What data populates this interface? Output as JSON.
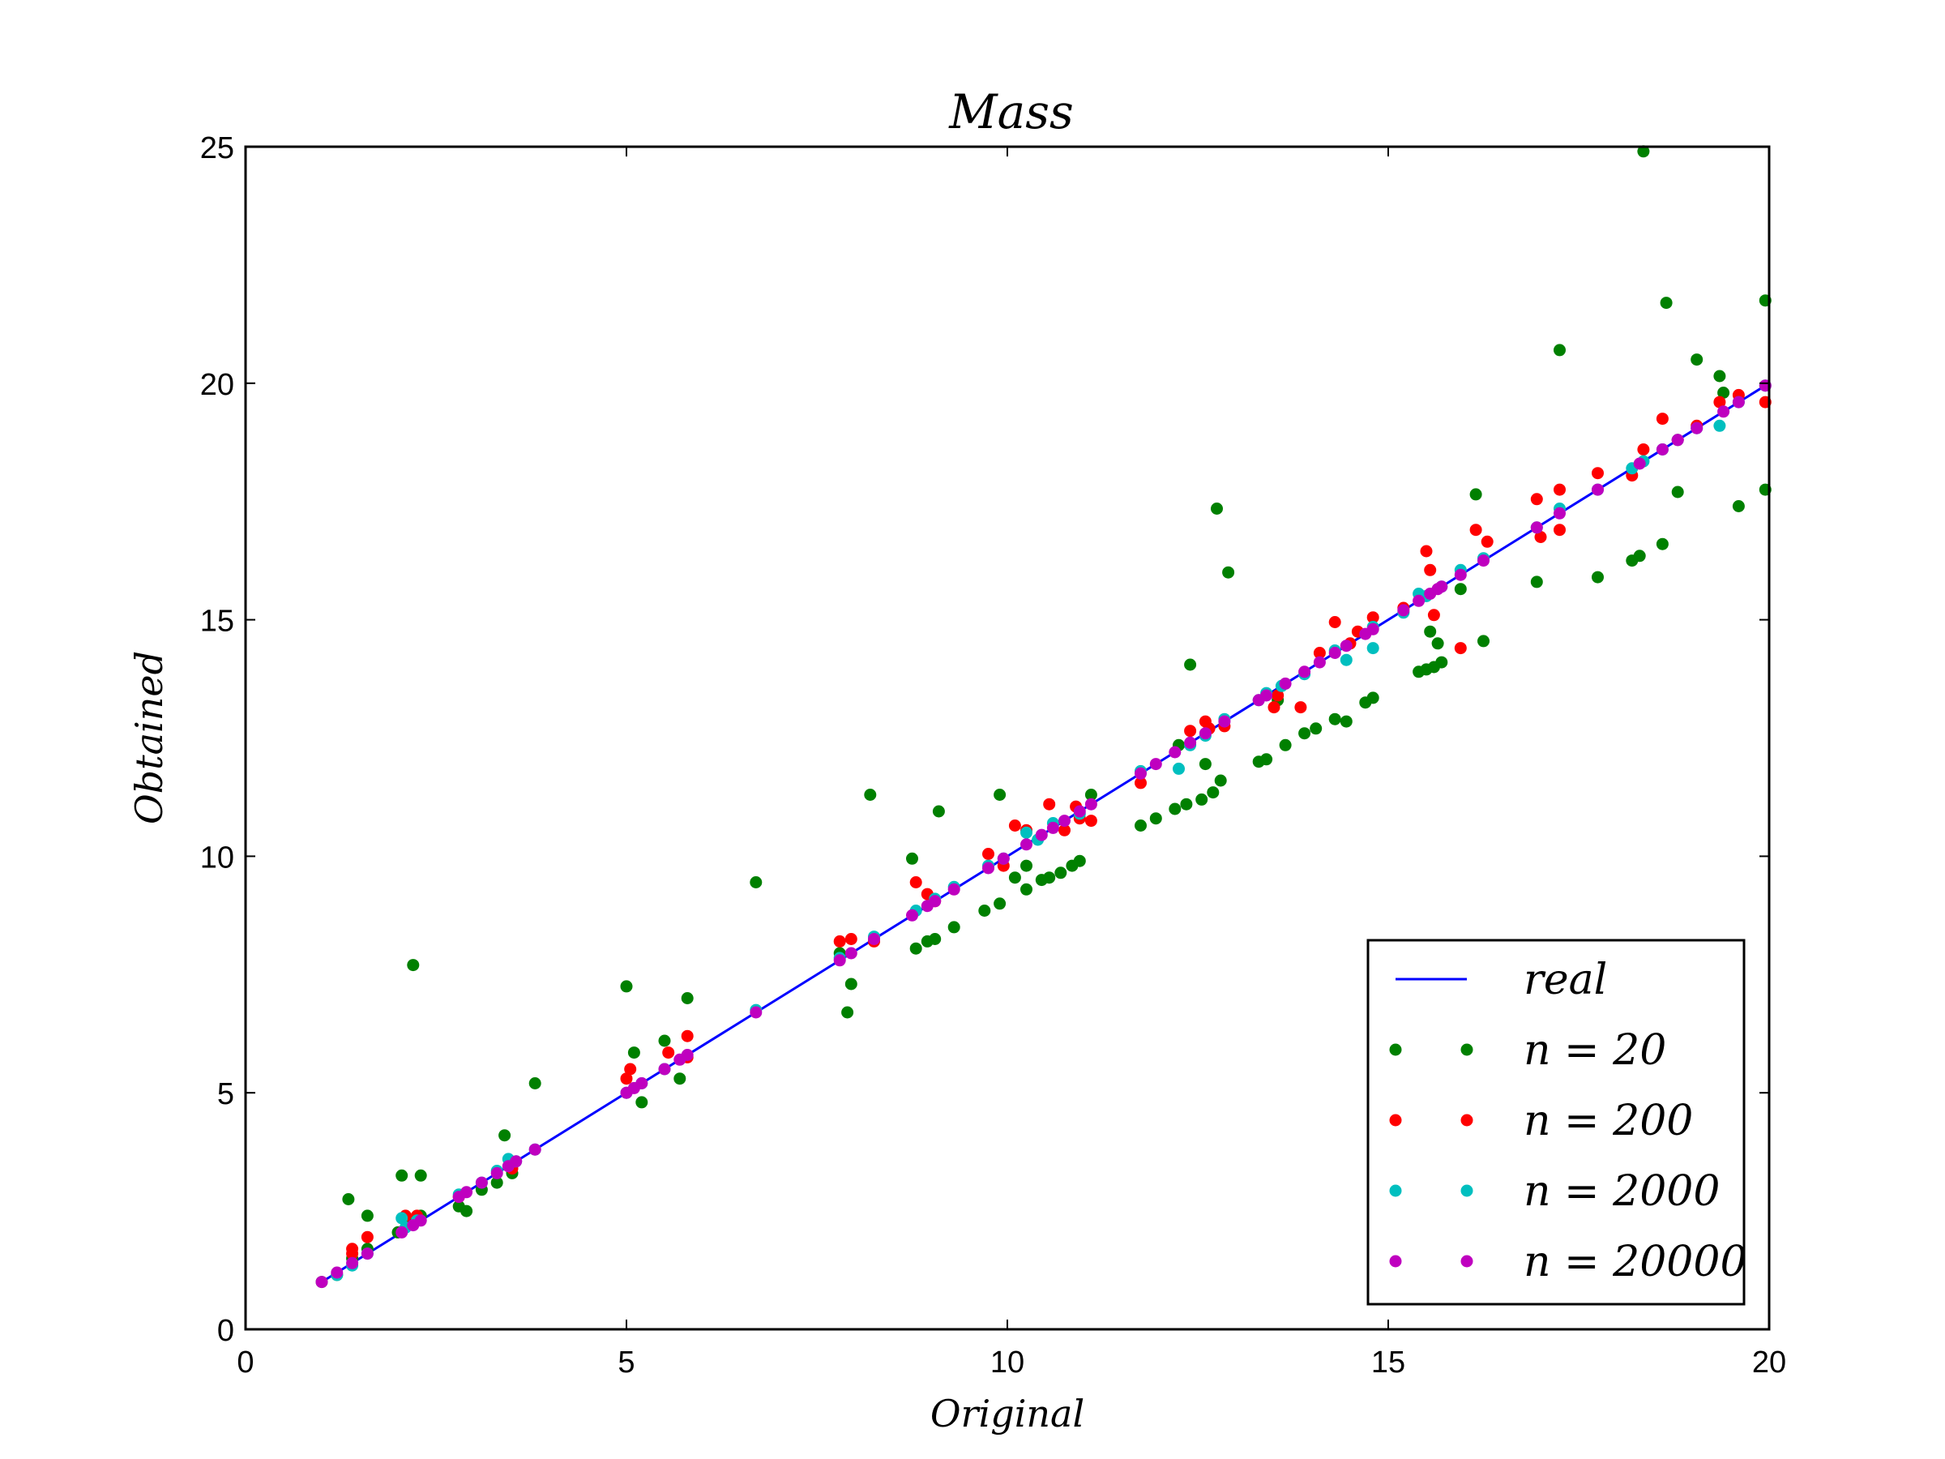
{
  "chart_data": {
    "type": "scatter",
    "title": "Mass",
    "xlabel": "Original",
    "ylabel": "Obtained",
    "xlim": [
      0,
      20
    ],
    "ylim": [
      0,
      25
    ],
    "xticks": [
      "0",
      "5",
      "10",
      "15",
      "20"
    ],
    "yticks": [
      "0",
      "5",
      "10",
      "15",
      "20",
      "25"
    ],
    "grid": false,
    "legend_position": "lower-right",
    "line_series": [
      {
        "name": "real",
        "color": "#0000ff",
        "x": [
          1,
          20
        ],
        "y": [
          1,
          20
        ]
      }
    ],
    "series": [
      {
        "name": "n=20",
        "legend_label": "n = 20",
        "color": "#008000",
        "points": [
          [
            1.0,
            1.0
          ],
          [
            1.2,
            1.15
          ],
          [
            1.35,
            2.75
          ],
          [
            1.4,
            1.5
          ],
          [
            1.6,
            2.4
          ],
          [
            1.6,
            1.7
          ],
          [
            2.0,
            2.05
          ],
          [
            2.05,
            3.25
          ],
          [
            2.1,
            2.3
          ],
          [
            2.2,
            7.7
          ],
          [
            2.3,
            3.25
          ],
          [
            2.3,
            2.4
          ],
          [
            2.8,
            2.6
          ],
          [
            2.9,
            2.5
          ],
          [
            3.1,
            2.95
          ],
          [
            3.3,
            3.1
          ],
          [
            3.4,
            4.1
          ],
          [
            3.5,
            3.3
          ],
          [
            3.8,
            5.2
          ],
          [
            5.0,
            7.25
          ],
          [
            5.1,
            5.85
          ],
          [
            5.2,
            4.8
          ],
          [
            5.5,
            6.1
          ],
          [
            5.7,
            5.3
          ],
          [
            5.8,
            7.0
          ],
          [
            6.7,
            9.45
          ],
          [
            7.8,
            7.95
          ],
          [
            7.9,
            6.7
          ],
          [
            7.95,
            7.3
          ],
          [
            8.2,
            11.3
          ],
          [
            8.75,
            9.95
          ],
          [
            8.8,
            8.05
          ],
          [
            8.95,
            8.2
          ],
          [
            9.05,
            8.25
          ],
          [
            9.1,
            10.95
          ],
          [
            9.3,
            8.5
          ],
          [
            9.7,
            8.85
          ],
          [
            9.9,
            9.0
          ],
          [
            9.9,
            11.3
          ],
          [
            10.1,
            9.55
          ],
          [
            10.25,
            9.3
          ],
          [
            10.25,
            9.8
          ],
          [
            10.45,
            9.5
          ],
          [
            10.55,
            9.55
          ],
          [
            10.7,
            9.65
          ],
          [
            10.85,
            9.8
          ],
          [
            10.95,
            9.9
          ],
          [
            11.1,
            11.3
          ],
          [
            11.75,
            10.65
          ],
          [
            11.95,
            10.8
          ],
          [
            12.2,
            11.0
          ],
          [
            12.25,
            12.35
          ],
          [
            12.35,
            11.1
          ],
          [
            12.4,
            14.05
          ],
          [
            12.55,
            11.2
          ],
          [
            12.6,
            11.95
          ],
          [
            12.7,
            11.35
          ],
          [
            12.75,
            17.35
          ],
          [
            12.8,
            11.6
          ],
          [
            12.9,
            16.0
          ],
          [
            13.3,
            12.0
          ],
          [
            13.4,
            12.05
          ],
          [
            13.55,
            13.3
          ],
          [
            13.65,
            12.35
          ],
          [
            13.9,
            12.6
          ],
          [
            14.05,
            12.7
          ],
          [
            14.3,
            12.9
          ],
          [
            14.45,
            12.85
          ],
          [
            14.7,
            13.25
          ],
          [
            14.8,
            13.35
          ],
          [
            15.4,
            13.9
          ],
          [
            15.5,
            13.95
          ],
          [
            15.55,
            14.75
          ],
          [
            15.6,
            14.0
          ],
          [
            15.65,
            14.5
          ],
          [
            15.7,
            14.1
          ],
          [
            15.95,
            15.65
          ],
          [
            16.15,
            17.65
          ],
          [
            16.25,
            14.55
          ],
          [
            16.95,
            15.8
          ],
          [
            17.25,
            20.7
          ],
          [
            17.75,
            15.9
          ],
          [
            18.2,
            16.25
          ],
          [
            18.3,
            16.35
          ],
          [
            18.35,
            24.9
          ],
          [
            18.6,
            16.6
          ],
          [
            18.65,
            21.7
          ],
          [
            18.8,
            17.7
          ],
          [
            19.05,
            20.5
          ],
          [
            19.35,
            20.15
          ],
          [
            19.4,
            19.8
          ],
          [
            19.6,
            17.4
          ],
          [
            19.95,
            21.75
          ],
          [
            19.95,
            17.75
          ]
        ]
      },
      {
        "name": "n=200",
        "legend_label": "n = 200",
        "color": "#ff0000",
        "points": [
          [
            1.4,
            1.6
          ],
          [
            1.4,
            1.7
          ],
          [
            1.6,
            1.95
          ],
          [
            2.1,
            2.4
          ],
          [
            2.25,
            2.4
          ],
          [
            2.8,
            2.8
          ],
          [
            3.5,
            3.4
          ],
          [
            5.0,
            5.3
          ],
          [
            5.05,
            5.5
          ],
          [
            5.55,
            5.85
          ],
          [
            5.8,
            6.2
          ],
          [
            5.8,
            5.75
          ],
          [
            7.8,
            8.2
          ],
          [
            7.95,
            8.25
          ],
          [
            8.25,
            8.2
          ],
          [
            8.8,
            9.45
          ],
          [
            8.95,
            9.2
          ],
          [
            9.05,
            9.05
          ],
          [
            9.75,
            10.05
          ],
          [
            9.95,
            9.8
          ],
          [
            10.1,
            10.65
          ],
          [
            10.25,
            10.55
          ],
          [
            10.55,
            11.1
          ],
          [
            10.75,
            10.55
          ],
          [
            10.9,
            11.05
          ],
          [
            10.95,
            10.8
          ],
          [
            11.1,
            10.75
          ],
          [
            11.75,
            11.55
          ],
          [
            12.4,
            12.65
          ],
          [
            12.6,
            12.85
          ],
          [
            12.65,
            12.7
          ],
          [
            12.85,
            12.75
          ],
          [
            13.5,
            13.15
          ],
          [
            13.55,
            13.4
          ],
          [
            13.85,
            13.15
          ],
          [
            14.1,
            14.3
          ],
          [
            14.3,
            14.95
          ],
          [
            14.5,
            14.5
          ],
          [
            14.6,
            14.75
          ],
          [
            14.8,
            15.05
          ],
          [
            15.2,
            15.25
          ],
          [
            15.5,
            16.45
          ],
          [
            15.55,
            16.05
          ],
          [
            15.6,
            15.1
          ],
          [
            15.95,
            14.4
          ],
          [
            16.15,
            16.9
          ],
          [
            16.3,
            16.65
          ],
          [
            16.95,
            17.55
          ],
          [
            17.0,
            16.75
          ],
          [
            17.25,
            17.75
          ],
          [
            17.25,
            16.9
          ],
          [
            17.75,
            18.1
          ],
          [
            18.2,
            18.05
          ],
          [
            18.35,
            18.6
          ],
          [
            18.6,
            19.25
          ],
          [
            18.8,
            18.8
          ],
          [
            19.05,
            19.1
          ],
          [
            19.35,
            19.6
          ],
          [
            19.6,
            19.75
          ],
          [
            19.95,
            19.6
          ]
        ]
      },
      {
        "name": "n=2000",
        "legend_label": "n = 2000",
        "color": "#00bfbf",
        "points": [
          [
            1.2,
            1.15
          ],
          [
            1.4,
            1.35
          ],
          [
            1.6,
            1.6
          ],
          [
            2.05,
            2.35
          ],
          [
            2.1,
            2.15
          ],
          [
            2.25,
            2.3
          ],
          [
            2.8,
            2.85
          ],
          [
            3.1,
            3.1
          ],
          [
            3.3,
            3.35
          ],
          [
            3.45,
            3.6
          ],
          [
            3.55,
            3.55
          ],
          [
            3.8,
            3.8
          ],
          [
            5.0,
            5.0
          ],
          [
            5.2,
            5.2
          ],
          [
            5.5,
            5.5
          ],
          [
            6.7,
            6.75
          ],
          [
            7.8,
            7.85
          ],
          [
            8.25,
            8.3
          ],
          [
            8.8,
            8.85
          ],
          [
            9.05,
            9.1
          ],
          [
            9.3,
            9.35
          ],
          [
            9.75,
            9.8
          ],
          [
            9.95,
            9.95
          ],
          [
            10.25,
            10.5
          ],
          [
            10.4,
            10.35
          ],
          [
            10.6,
            10.7
          ],
          [
            10.95,
            10.9
          ],
          [
            11.75,
            11.8
          ],
          [
            12.25,
            11.85
          ],
          [
            12.4,
            12.35
          ],
          [
            12.6,
            12.55
          ],
          [
            12.85,
            12.9
          ],
          [
            13.3,
            13.3
          ],
          [
            13.4,
            13.45
          ],
          [
            13.6,
            13.6
          ],
          [
            13.9,
            13.85
          ],
          [
            14.3,
            14.35
          ],
          [
            14.45,
            14.15
          ],
          [
            14.8,
            14.85
          ],
          [
            14.8,
            14.4
          ],
          [
            15.2,
            15.15
          ],
          [
            15.4,
            15.55
          ],
          [
            15.5,
            15.5
          ],
          [
            15.7,
            15.7
          ],
          [
            15.95,
            16.05
          ],
          [
            16.25,
            16.3
          ],
          [
            16.95,
            16.95
          ],
          [
            17.25,
            17.35
          ],
          [
            17.75,
            17.75
          ],
          [
            18.2,
            18.2
          ],
          [
            18.35,
            18.35
          ],
          [
            18.6,
            18.6
          ],
          [
            18.8,
            18.8
          ],
          [
            19.05,
            19.05
          ],
          [
            19.35,
            19.1
          ],
          [
            19.6,
            19.6
          ],
          [
            19.95,
            19.95
          ]
        ]
      },
      {
        "name": "n=20000",
        "legend_label": "n = 20000",
        "color": "#bf00bf",
        "points": [
          [
            1.0,
            1.0
          ],
          [
            1.2,
            1.2
          ],
          [
            1.4,
            1.4
          ],
          [
            1.6,
            1.6
          ],
          [
            2.05,
            2.05
          ],
          [
            2.2,
            2.2
          ],
          [
            2.3,
            2.3
          ],
          [
            2.8,
            2.8
          ],
          [
            2.9,
            2.9
          ],
          [
            3.1,
            3.1
          ],
          [
            3.3,
            3.3
          ],
          [
            3.45,
            3.45
          ],
          [
            3.55,
            3.55
          ],
          [
            3.8,
            3.8
          ],
          [
            5.0,
            5.0
          ],
          [
            5.1,
            5.1
          ],
          [
            5.2,
            5.2
          ],
          [
            5.5,
            5.5
          ],
          [
            5.7,
            5.7
          ],
          [
            5.8,
            5.8
          ],
          [
            6.7,
            6.7
          ],
          [
            7.8,
            7.8
          ],
          [
            7.95,
            7.95
          ],
          [
            8.25,
            8.25
          ],
          [
            8.75,
            8.75
          ],
          [
            8.95,
            8.95
          ],
          [
            9.05,
            9.05
          ],
          [
            9.3,
            9.3
          ],
          [
            9.75,
            9.75
          ],
          [
            9.95,
            9.95
          ],
          [
            10.25,
            10.25
          ],
          [
            10.45,
            10.45
          ],
          [
            10.6,
            10.6
          ],
          [
            10.75,
            10.75
          ],
          [
            10.95,
            10.95
          ],
          [
            11.1,
            11.1
          ],
          [
            11.75,
            11.75
          ],
          [
            11.95,
            11.95
          ],
          [
            12.2,
            12.2
          ],
          [
            12.4,
            12.4
          ],
          [
            12.6,
            12.6
          ],
          [
            12.85,
            12.85
          ],
          [
            13.3,
            13.3
          ],
          [
            13.4,
            13.4
          ],
          [
            13.65,
            13.65
          ],
          [
            13.9,
            13.9
          ],
          [
            14.1,
            14.1
          ],
          [
            14.3,
            14.3
          ],
          [
            14.45,
            14.45
          ],
          [
            14.7,
            14.7
          ],
          [
            14.8,
            14.8
          ],
          [
            15.2,
            15.2
          ],
          [
            15.4,
            15.4
          ],
          [
            15.55,
            15.55
          ],
          [
            15.65,
            15.65
          ],
          [
            15.7,
            15.7
          ],
          [
            15.95,
            15.95
          ],
          [
            16.25,
            16.25
          ],
          [
            16.95,
            16.95
          ],
          [
            17.25,
            17.25
          ],
          [
            17.75,
            17.75
          ],
          [
            18.3,
            18.3
          ],
          [
            18.6,
            18.6
          ],
          [
            18.8,
            18.8
          ],
          [
            19.05,
            19.05
          ],
          [
            19.4,
            19.4
          ],
          [
            19.6,
            19.6
          ],
          [
            19.95,
            19.95
          ]
        ]
      }
    ]
  }
}
